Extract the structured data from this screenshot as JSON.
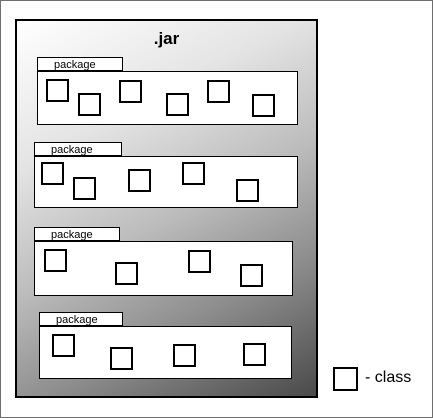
{
  "diagram": {
    "container_label": ".jar",
    "package_label": "package",
    "package_count": 4,
    "classes_per_package": [
      6,
      5,
      4,
      4
    ],
    "legend": {
      "label": "- class"
    }
  }
}
